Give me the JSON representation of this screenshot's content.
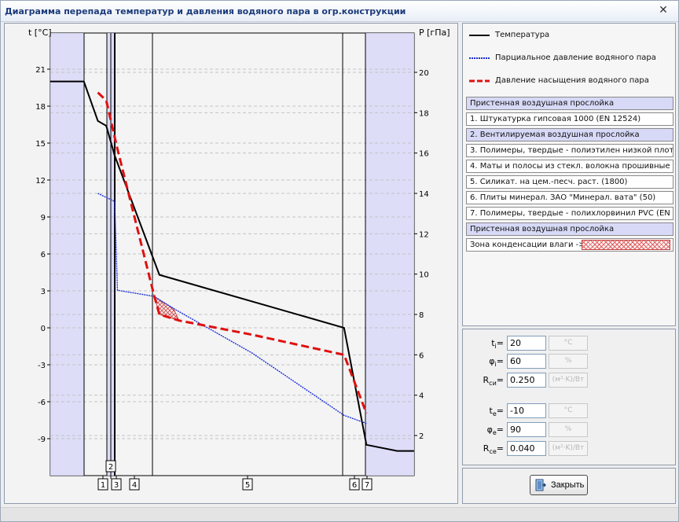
{
  "window": {
    "title": "Диаграмма перепада температур и давления водяного пара в огр.конструкции",
    "close_glyph": "✕"
  },
  "chart": {
    "left_axis_label": "t [°C]",
    "right_axis_label": "P [гПа]",
    "left_ticks": [
      "21",
      "18",
      "15",
      "12",
      "9",
      "6",
      "3",
      "0",
      "-3",
      "-6",
      "-9"
    ],
    "right_ticks": [
      "20",
      "18",
      "16",
      "14",
      "12",
      "10",
      "8",
      "6",
      "4",
      "2"
    ],
    "layer_markers": [
      "1",
      "2",
      "3",
      "4",
      "5",
      "6",
      "7"
    ],
    "colors": {
      "temperature": "#000000",
      "partial": "#1a2fd8",
      "saturation": "#e01010",
      "air_layer": "#d8d8f8"
    }
  },
  "chart_data": {
    "type": "line",
    "ylabel": "t [°C]",
    "y2label": "P [гПа]",
    "ylim": [
      -12,
      23
    ],
    "y2lim": [
      0,
      22
    ],
    "series": [
      {
        "name": "Температура",
        "axis": "left",
        "points": [
          [
            0,
            20
          ],
          [
            0.6,
            20
          ],
          [
            0.85,
            16.8
          ],
          [
            1.0,
            16.4
          ],
          [
            1.15,
            14
          ],
          [
            1.95,
            4.3
          ],
          [
            5.25,
            0.0
          ],
          [
            5.65,
            -9.5
          ],
          [
            6.2,
            -10
          ],
          [
            6.5,
            -10
          ]
        ]
      },
      {
        "name": "Парциальное давление водяного пара",
        "axis": "right",
        "points": [
          [
            0.85,
            14
          ],
          [
            1.15,
            13.6
          ],
          [
            1.2,
            9.2
          ],
          [
            1.85,
            8.9
          ],
          [
            2.2,
            8.3
          ],
          [
            3.6,
            6.1
          ],
          [
            5.25,
            3.0
          ],
          [
            5.65,
            2.6
          ]
        ]
      },
      {
        "name": "Давление насыщения водяного пара",
        "axis": "right",
        "points": [
          [
            0.85,
            19
          ],
          [
            1.0,
            18.6
          ],
          [
            1.2,
            16.2
          ],
          [
            1.85,
            9.0
          ],
          [
            1.95,
            8.0
          ],
          [
            2.3,
            7.7
          ],
          [
            3.6,
            7.0
          ],
          [
            5.25,
            6.0
          ],
          [
            5.65,
            3.1
          ]
        ]
      }
    ]
  },
  "legend": [
    {
      "label": "Температура"
    },
    {
      "label": "Парциальное давление водяного пара"
    },
    {
      "label": "Давление насыщения водяного пара"
    }
  ],
  "layers": [
    "Пристенная воздушная прослойка",
    "1. Штукатурка гипсовая 1000 (EN 12524)",
    "2. Вентилируемая воздушная прослойка",
    "3. Полимеры, твердые - полиэтилен низкой плот...",
    "4. Маты и полосы из стекл. волокна прошивные ...",
    "5. Силикат. на цем.-песч. раст. (1800)",
    "6. Плиты минерал. ЗАО \"Минерал. вата\" (50)",
    "7. Полимеры, твердые - полихлорвинил PVC (EN ...",
    "Пристенная воздушная прослойка"
  ],
  "condensation": {
    "label": "Зона конденсации влаги ->"
  },
  "params": {
    "ti": {
      "label": "t",
      "sub": "i",
      "value": "20",
      "unit": "°C"
    },
    "phii": {
      "label": "φ",
      "sub": "i",
      "value": "60",
      "unit": "%"
    },
    "rsi": {
      "label": "R",
      "sub": "си",
      "value": "0.250",
      "unit": "(м²·K)/Вт"
    },
    "te": {
      "label": "t",
      "sub": "e",
      "value": "-10",
      "unit": "°C"
    },
    "phie": {
      "label": "φ",
      "sub": "e",
      "value": "90",
      "unit": "%"
    },
    "rse": {
      "label": "R",
      "sub": "се",
      "value": "0.040",
      "unit": "(м²·K)/Вт"
    }
  },
  "close_button": {
    "label": "Закрыть"
  }
}
